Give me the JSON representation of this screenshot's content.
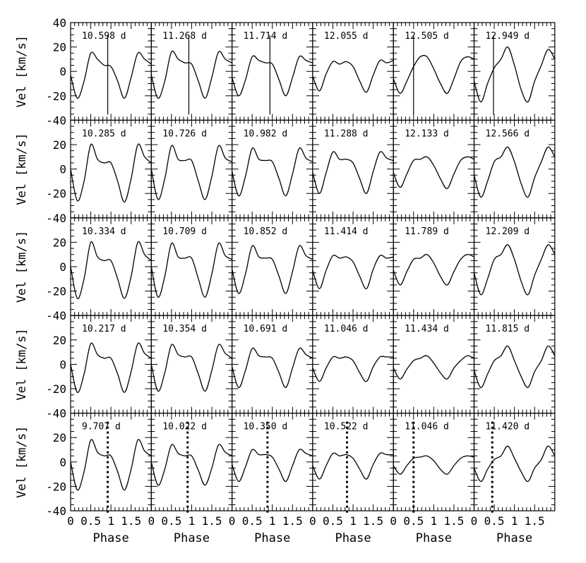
{
  "chart_data": {
    "type": "line",
    "layout": "grid of small multiples, 5 rows x 6 columns, shared axes",
    "xlabel": "Phase",
    "ylabel": "Vel [km/s]",
    "xlim": [
      0,
      2
    ],
    "ylim": [
      -40,
      40
    ],
    "x_tick_labels": [
      "0",
      "0.5",
      "1",
      "1.5"
    ],
    "y_tick_labels": [
      "-40",
      "-20",
      "0",
      "20",
      "40"
    ],
    "row_marker_styles": [
      "solid",
      "solid",
      "none",
      "none",
      "dotted"
    ],
    "panels": [
      [
        {
          "label": "10.598 d",
          "marker_phase": 0.92,
          "y_at_phase": [
            -3,
            -22,
            -8,
            15,
            10,
            5,
            4,
            -8,
            -22,
            -5,
            15,
            10,
            6
          ]
        },
        {
          "label": "11.268 d",
          "marker_phase": 0.93,
          "y_at_phase": [
            -3,
            -22,
            -8,
            16,
            10,
            7,
            6,
            -8,
            -22,
            -5,
            16,
            10,
            7
          ]
        },
        {
          "label": "11.714 d",
          "marker_phase": 0.94,
          "y_at_phase": [
            -5,
            -20,
            -7,
            12,
            9,
            7,
            6,
            -7,
            -20,
            -5,
            12,
            9,
            7
          ]
        },
        {
          "label": "12.055 d",
          "marker_phase": null,
          "y_at_phase": [
            -4,
            -16,
            -2,
            8,
            6,
            8,
            4,
            -8,
            -17,
            -3,
            9,
            7,
            9
          ]
        },
        {
          "label": "12.505 d",
          "marker_phase": 0.5,
          "y_at_phase": [
            -6,
            -18,
            -8,
            4,
            12,
            12,
            2,
            -10,
            -18,
            -6,
            8,
            12,
            10
          ]
        },
        {
          "label": "12.949 d",
          "marker_phase": 0.48,
          "y_at_phase": [
            -8,
            -25,
            -10,
            3,
            10,
            20,
            5,
            -15,
            -25,
            -8,
            5,
            18,
            10
          ]
        }
      ],
      [
        {
          "label": "10.285 d",
          "marker_phase": null,
          "y_at_phase": [
            0,
            -26,
            -10,
            20,
            8,
            5,
            5,
            -10,
            -27,
            -8,
            20,
            10,
            5
          ]
        },
        {
          "label": "10.726 d",
          "marker_phase": null,
          "y_at_phase": [
            0,
            -25,
            -8,
            19,
            8,
            7,
            7,
            -10,
            -25,
            -6,
            19,
            9,
            6
          ]
        },
        {
          "label": "10.982 d",
          "marker_phase": null,
          "y_at_phase": [
            -2,
            -22,
            -6,
            17,
            8,
            7,
            6,
            -8,
            -22,
            -4,
            17,
            9,
            6
          ]
        },
        {
          "label": "11.288 d",
          "marker_phase": null,
          "y_at_phase": [
            -3,
            -20,
            -3,
            14,
            8,
            8,
            5,
            -8,
            -20,
            -2,
            14,
            9,
            7
          ]
        },
        {
          "label": "12.133 d",
          "marker_phase": null,
          "y_at_phase": [
            -3,
            -15,
            -4,
            7,
            8,
            10,
            3,
            -8,
            -16,
            -4,
            7,
            10,
            8
          ]
        },
        {
          "label": "12.566 d",
          "marker_phase": null,
          "y_at_phase": [
            -5,
            -23,
            -10,
            6,
            10,
            18,
            6,
            -12,
            -23,
            -7,
            6,
            18,
            10
          ]
        }
      ],
      [
        {
          "label": "10.334 d",
          "marker_phase": null,
          "y_at_phase": [
            0,
            -26,
            -10,
            20,
            8,
            5,
            5,
            -10,
            -26,
            -8,
            20,
            10,
            5
          ]
        },
        {
          "label": "10.709 d",
          "marker_phase": null,
          "y_at_phase": [
            0,
            -25,
            -8,
            19,
            8,
            7,
            7,
            -10,
            -25,
            -6,
            19,
            9,
            6
          ]
        },
        {
          "label": "10.852 d",
          "marker_phase": null,
          "y_at_phase": [
            -2,
            -22,
            -6,
            17,
            8,
            7,
            6,
            -8,
            -22,
            -4,
            17,
            9,
            6
          ]
        },
        {
          "label": "11.414 d",
          "marker_phase": null,
          "y_at_phase": [
            -3,
            -18,
            -3,
            9,
            7,
            8,
            4,
            -8,
            -18,
            -2,
            9,
            7,
            8
          ]
        },
        {
          "label": "11.789 d",
          "marker_phase": null,
          "y_at_phase": [
            -3,
            -15,
            -4,
            6,
            7,
            10,
            3,
            -8,
            -15,
            -4,
            6,
            10,
            8
          ]
        },
        {
          "label": "12.209 d",
          "marker_phase": null,
          "y_at_phase": [
            -5,
            -23,
            -10,
            6,
            10,
            18,
            6,
            -12,
            -23,
            -7,
            6,
            18,
            10
          ]
        }
      ],
      [
        {
          "label": "10.217 d",
          "marker_phase": null,
          "y_at_phase": [
            0,
            -23,
            -8,
            17,
            8,
            5,
            5,
            -8,
            -23,
            -6,
            17,
            9,
            5
          ]
        },
        {
          "label": "10.354 d",
          "marker_phase": null,
          "y_at_phase": [
            0,
            -22,
            -7,
            16,
            8,
            6,
            6,
            -8,
            -22,
            -5,
            16,
            9,
            5
          ]
        },
        {
          "label": "10.691 d",
          "marker_phase": null,
          "y_at_phase": [
            -2,
            -19,
            -5,
            13,
            7,
            6,
            5,
            -7,
            -19,
            -3,
            13,
            8,
            5
          ]
        },
        {
          "label": "11.046 d",
          "marker_phase": null,
          "y_at_phase": [
            -3,
            -14,
            -3,
            6,
            5,
            6,
            3,
            -7,
            -14,
            -2,
            6,
            6,
            6
          ]
        },
        {
          "label": "11.434 d",
          "marker_phase": null,
          "y_at_phase": [
            -3,
            -12,
            -4,
            3,
            5,
            7,
            1,
            -7,
            -12,
            -3,
            3,
            7,
            5
          ]
        },
        {
          "label": "11.815 d",
          "marker_phase": null,
          "y_at_phase": [
            -5,
            -19,
            -8,
            3,
            7,
            15,
            3,
            -10,
            -19,
            -6,
            3,
            15,
            7
          ]
        }
      ],
      [
        {
          "label": "9.707 d",
          "marker_phase": 0.92,
          "y_at_phase": [
            0,
            -23,
            -8,
            18,
            8,
            5,
            5,
            -8,
            -23,
            -6,
            18,
            9,
            5
          ]
        },
        {
          "label": "10.022 d",
          "marker_phase": 0.9,
          "y_at_phase": [
            0,
            -19,
            -6,
            14,
            7,
            5,
            5,
            -7,
            -19,
            -5,
            14,
            8,
            5
          ]
        },
        {
          "label": "10.350 d",
          "marker_phase": 0.88,
          "y_at_phase": [
            -2,
            -16,
            -4,
            10,
            6,
            6,
            4,
            -6,
            -16,
            -3,
            10,
            7,
            5
          ]
        },
        {
          "label": "10.522 d",
          "marker_phase": 0.85,
          "y_at_phase": [
            -3,
            -14,
            -3,
            7,
            5,
            6,
            3,
            -6,
            -14,
            -2,
            7,
            6,
            6
          ]
        },
        {
          "label": "11.046 d",
          "marker_phase": 0.5,
          "y_at_phase": [
            -3,
            -10,
            -3,
            3,
            4,
            5,
            1,
            -6,
            -10,
            -3,
            3,
            5,
            4
          ]
        },
        {
          "label": "11.420 d",
          "marker_phase": 0.45,
          "y_at_phase": [
            -5,
            -16,
            -6,
            2,
            5,
            13,
            3,
            -8,
            -16,
            -5,
            2,
            13,
            5
          ]
        }
      ]
    ]
  }
}
